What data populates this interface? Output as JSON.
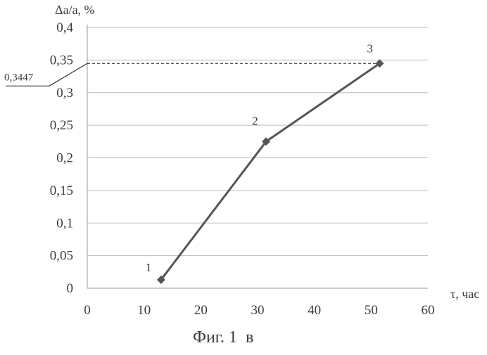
{
  "chart_data": {
    "type": "line",
    "title": "",
    "caption": "Фиг. 1  в",
    "xlabel": "τ, час",
    "ylabel": "Δa/a, %",
    "xlim": [
      0,
      60
    ],
    "ylim": [
      0,
      0.4
    ],
    "x_ticks": [
      "0",
      "10",
      "20",
      "30",
      "40",
      "50",
      "60"
    ],
    "y_ticks": [
      "0",
      "0,05",
      "0,1",
      "0,15",
      "0,2",
      "0,25",
      "0,3",
      "0,35",
      "0,4"
    ],
    "grid": "horizontal",
    "series": [
      {
        "x": [
          13,
          31.5,
          51.5
        ],
        "y": [
          0.013,
          0.225,
          0.3447
        ],
        "point_labels": [
          "1",
          "2",
          "3"
        ]
      }
    ],
    "annotations": [
      {
        "text": "0,3447",
        "y": 0.3447,
        "style": "dashed reference line"
      }
    ],
    "colors": {
      "line": "#555555",
      "marker": "#555555",
      "grid": "#bdbdbd",
      "text": "#3a3a3a"
    }
  }
}
